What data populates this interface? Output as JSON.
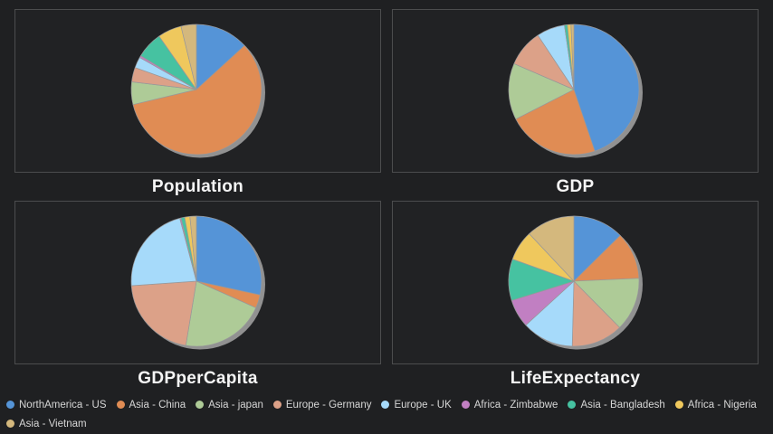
{
  "page": {
    "background": "#1f2022",
    "panel_background": "#212224",
    "panel_border": "#4c4d4e",
    "title_color": "#f5f5f5",
    "legend_text_color": "#d6d6d6",
    "pie_shadow_color": "#919191",
    "slice_border_color": "#98989a"
  },
  "legend": {
    "position": "bottom",
    "items": [
      {
        "label": "NorthAmerica - US",
        "color": "#5594d7"
      },
      {
        "label": "Asia - China",
        "color": "#e08c54"
      },
      {
        "label": "Asia - japan",
        "color": "#aecb97"
      },
      {
        "label": "Europe - Germany",
        "color": "#dca188"
      },
      {
        "label": "Europe - UK",
        "color": "#a6dafa"
      },
      {
        "label": "Africa - Zimbabwe",
        "color": "#c17fc2"
      },
      {
        "label": "Asia - Bangladesh",
        "color": "#46c2a1"
      },
      {
        "label": "Africa - Nigeria",
        "color": "#efc85d"
      },
      {
        "label": "Asia - Vietnam",
        "color": "#d4b87d"
      }
    ]
  },
  "chart_data": [
    {
      "type": "pie",
      "title": "Population",
      "categories": [
        "NorthAmerica - US",
        "Asia - China",
        "Asia - japan",
        "Europe - Germany",
        "Europe - UK",
        "Africa - Zimbabwe",
        "Asia - Bangladesh",
        "Africa - Nigeria",
        "Asia - Vietnam"
      ],
      "values": [
        13.2,
        58.0,
        5.6,
        3.6,
        2.7,
        0.5,
        6.6,
        5.9,
        3.8
      ],
      "unit": "percent-of-total",
      "start_angle": "12-oclock",
      "direction": "clockwise",
      "data_labels": "none"
    },
    {
      "type": "pie",
      "title": "GDP",
      "categories": [
        "NorthAmerica - US",
        "Asia - China",
        "Asia - japan",
        "Europe - Germany",
        "Europe - UK",
        "Africa - Zimbabwe",
        "Asia - Bangladesh",
        "Africa - Nigeria",
        "Asia - Vietnam"
      ],
      "values": [
        44.8,
        22.7,
        14.0,
        9.2,
        7.0,
        0.02,
        0.7,
        0.9,
        0.7
      ],
      "unit": "percent-of-total",
      "start_angle": "12-oclock",
      "direction": "clockwise",
      "data_labels": "none"
    },
    {
      "type": "pie",
      "title": "GDPperCapita",
      "categories": [
        "NorthAmerica - US",
        "Asia - China",
        "Asia - japan",
        "Europe - Germany",
        "Europe - UK",
        "Africa - Zimbabwe",
        "Asia - Bangladesh",
        "Africa - Nigeria",
        "Asia - Vietnam"
      ],
      "values": [
        28.4,
        3.3,
        20.9,
        21.3,
        22.0,
        0.3,
        0.9,
        1.3,
        1.6
      ],
      "unit": "percent-of-total",
      "start_angle": "12-oclock",
      "direction": "clockwise",
      "data_labels": "none"
    },
    {
      "type": "pie",
      "title": "LifeExpectancy",
      "categories": [
        "NorthAmerica - US",
        "Asia - China",
        "Asia - japan",
        "Europe - Germany",
        "Europe - UK",
        "Africa - Zimbabwe",
        "Asia - Bangladesh",
        "Africa - Nigeria",
        "Asia - Vietnam"
      ],
      "values": [
        12.6,
        11.7,
        13.3,
        12.8,
        12.8,
        7.0,
        10.3,
        7.5,
        12.0
      ],
      "unit": "percent-of-total",
      "start_angle": "12-oclock",
      "direction": "clockwise",
      "data_labels": "none"
    }
  ]
}
